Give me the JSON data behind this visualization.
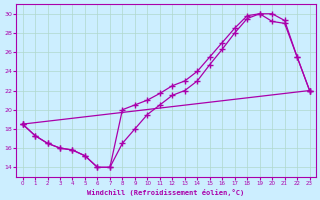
{
  "xlabel": "Windchill (Refroidissement éolien,°C)",
  "bg_color": "#cceeff",
  "grid_color": "#b0d8cc",
  "line_color": "#aa00aa",
  "ylim": [
    13.0,
    31.0
  ],
  "xlim": [
    -0.5,
    23.5
  ],
  "yticks": [
    14,
    16,
    18,
    20,
    22,
    24,
    26,
    28,
    30
  ],
  "xticks": [
    0,
    1,
    2,
    3,
    4,
    5,
    6,
    7,
    8,
    9,
    10,
    11,
    12,
    13,
    14,
    15,
    16,
    17,
    18,
    19,
    20,
    21,
    22,
    23
  ],
  "line_top": {
    "x": [
      0,
      1,
      2,
      3,
      4,
      5,
      6,
      7,
      8,
      9,
      10,
      11,
      12,
      13,
      14,
      15,
      16,
      17,
      18,
      19,
      20,
      21,
      22,
      23
    ],
    "y": [
      18.5,
      17.3,
      16.5,
      16.0,
      15.8,
      15.2,
      14.0,
      14.0,
      16.5,
      18.0,
      19.5,
      20.5,
      21.5,
      22.0,
      23.0,
      24.7,
      26.3,
      28.0,
      29.5,
      30.0,
      30.0,
      29.3,
      25.5,
      22.0
    ]
  },
  "line_mid": {
    "x": [
      0,
      1,
      2,
      3,
      4,
      5,
      6,
      7,
      8,
      9,
      10,
      11,
      12,
      13,
      14,
      15,
      16,
      17,
      18,
      19,
      20,
      21,
      22,
      23
    ],
    "y": [
      18.5,
      17.3,
      16.5,
      16.0,
      15.8,
      15.2,
      14.0,
      14.0,
      20.0,
      20.5,
      21.0,
      21.7,
      22.5,
      23.0,
      24.0,
      25.5,
      27.0,
      28.5,
      29.8,
      30.0,
      29.2,
      29.0,
      25.5,
      22.0
    ]
  },
  "line_bot": {
    "x": [
      0,
      23
    ],
    "y": [
      18.5,
      22.0
    ]
  }
}
